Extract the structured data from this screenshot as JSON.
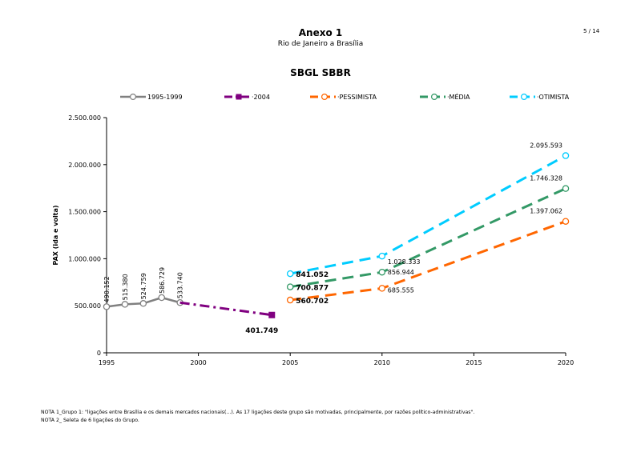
{
  "header": {
    "title": "Anexo 1",
    "subtitle": "Rio de Janeiro a Brasília",
    "page": "5 / 14"
  },
  "notes": [
    "NOTA 1_Grupo 1: \"ligações entre Brasília e os demais mercados nacionais(...). As 17 ligações deste grupo são motivadas, principalmente, por razões político-administrativas\".",
    "NOTA 2_ Seleta de 6 ligações do Grupo."
  ],
  "chart_data": {
    "type": "line",
    "title": "SBGL SBBR",
    "xlabel": "",
    "ylabel": "PAX (ida e volta)",
    "xlim": [
      1995,
      2020
    ],
    "ylim": [
      0,
      2500000
    ],
    "x_ticks": [
      1995,
      2000,
      2005,
      2010,
      2015,
      2020
    ],
    "x_tick_labels": [
      "1995",
      "2000",
      "2005",
      "2010",
      "2015",
      "2020"
    ],
    "y_ticks": [
      0,
      500000,
      1000000,
      1500000,
      2000000,
      2500000
    ],
    "y_tick_labels": [
      "0",
      "500.000",
      "1.000.000",
      "1.500.000",
      "2.000.000",
      "2.500.000"
    ],
    "grid": false,
    "legend_position": "top",
    "series": [
      {
        "name": "1995-1999",
        "color": "#808080",
        "style": "solid",
        "marker": "circle",
        "points": [
          [
            1995,
            490152
          ],
          [
            1996,
            515380
          ],
          [
            1997,
            524759
          ],
          [
            1998,
            586729
          ],
          [
            1999,
            533740
          ]
        ],
        "labels": [
          "490.152",
          "515.380",
          "524.759",
          "586.729",
          "533.740"
        ]
      },
      {
        "name": "2004",
        "color": "#800080",
        "style": "dashdot",
        "marker": "square",
        "points": [
          [
            1999,
            533740
          ],
          [
            2004,
            401749
          ]
        ],
        "labels": [
          "",
          "401.749"
        ]
      },
      {
        "name": "PESSIMISTA",
        "color": "#FF6600",
        "style": "dashed",
        "marker": "circle",
        "points": [
          [
            2005,
            560702
          ],
          [
            2010,
            685555
          ],
          [
            2020,
            1397062
          ]
        ],
        "labels": [
          "560.702",
          "685.555",
          "1.397.062"
        ]
      },
      {
        "name": "MÉDIA",
        "color": "#339966",
        "style": "dashed",
        "marker": "circle",
        "points": [
          [
            2005,
            700877
          ],
          [
            2010,
            856944
          ],
          [
            2020,
            1746328
          ]
        ],
        "labels": [
          "700.877",
          "856.944",
          "1.746.328"
        ]
      },
      {
        "name": "OTIMISTA",
        "color": "#00CCFF",
        "style": "dashed",
        "marker": "circle",
        "points": [
          [
            2005,
            841052
          ],
          [
            2010,
            1028333
          ],
          [
            2020,
            2095593
          ]
        ],
        "labels": [
          "841.052",
          "1.028.333",
          "2.095.593"
        ]
      }
    ],
    "legend_labels": [
      "1995-1999",
      "2004",
      "PESSIMISTA",
      "MÉDIA",
      "OTIMISTA"
    ]
  }
}
